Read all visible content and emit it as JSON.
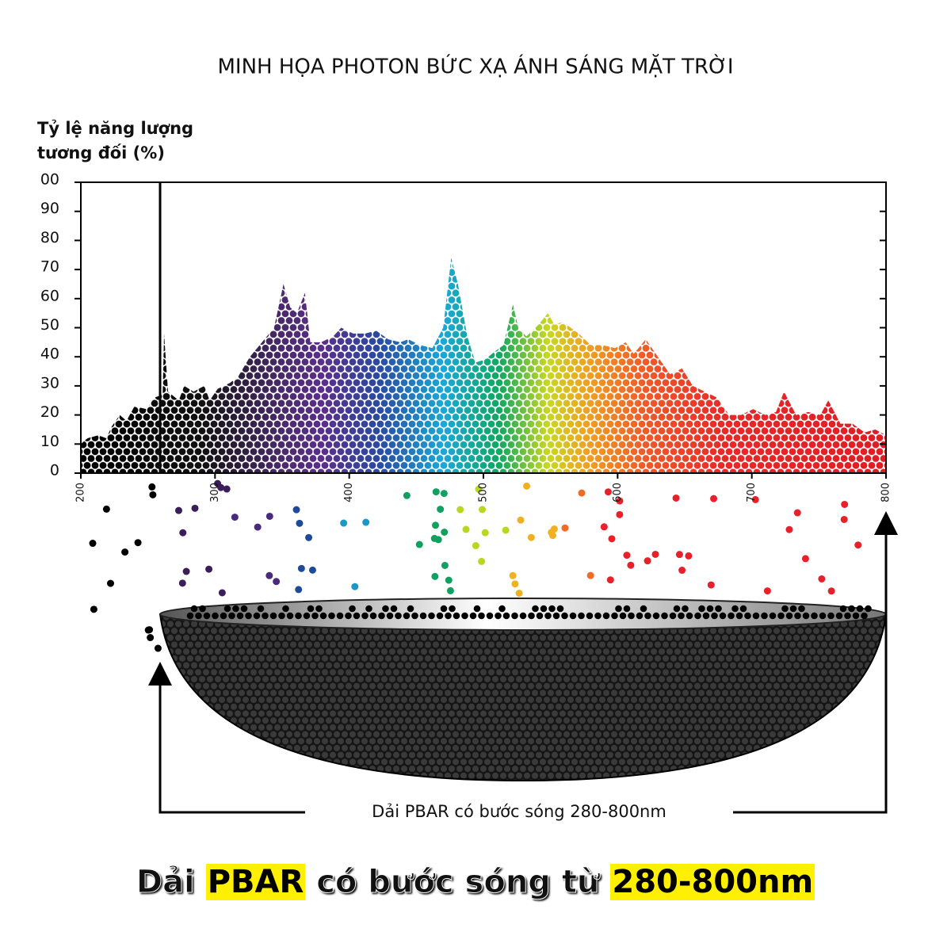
{
  "chart_data": {
    "type": "area",
    "title": "MINH HỌA PHOTON BỨC XẠ ÁNH SÁNG MẶT TRỜI",
    "y_label": [
      "Tỷ lệ năng lượng",
      "tương đối (%)"
    ],
    "x": [
      200,
      205,
      213,
      219,
      223,
      229,
      234,
      240,
      249,
      255,
      261,
      262,
      265,
      273,
      277,
      284,
      292,
      296,
      302,
      311,
      317,
      326,
      335,
      344,
      351,
      356,
      361,
      367,
      371,
      379,
      388,
      394,
      403,
      412,
      420,
      429,
      438,
      444,
      453,
      462,
      470,
      476,
      481,
      488,
      494,
      501,
      509,
      515,
      522,
      526,
      532,
      541,
      548,
      553,
      559,
      565,
      571,
      580,
      589,
      598,
      606,
      612,
      621,
      630,
      639,
      648,
      656,
      665,
      674,
      683,
      692,
      701,
      710,
      718,
      724,
      733,
      742,
      751,
      757,
      766,
      775,
      784,
      792,
      800
    ],
    "values": [
      10,
      12,
      13,
      12,
      16,
      20,
      18,
      23,
      22,
      26,
      27,
      48,
      28,
      25,
      30,
      28,
      30,
      25,
      29,
      31,
      33,
      40,
      45,
      50,
      65,
      57,
      55,
      62,
      45,
      45,
      47,
      50,
      48,
      48,
      49,
      46,
      45,
      46,
      44,
      43,
      50,
      74,
      65,
      47,
      38,
      39,
      42,
      44,
      58,
      50,
      47,
      51,
      55,
      51,
      52,
      50,
      48,
      44,
      44,
      43,
      45,
      41,
      46,
      40,
      34,
      36,
      30,
      28,
      26,
      20,
      20,
      22,
      20,
      21,
      28,
      20,
      21,
      20,
      25,
      17,
      17,
      14,
      15,
      13
    ],
    "xlim": [
      200,
      800
    ],
    "xticks": [
      200,
      300,
      400,
      500,
      600,
      700,
      800
    ],
    "ylim": [
      0,
      100
    ],
    "yticks": [
      0,
      10,
      20,
      30,
      40,
      50,
      60,
      70,
      80,
      90,
      {
        "value": 100,
        "label": "00"
      }
    ],
    "band_label": "Dải PBAR có bước sóng 280-800nm",
    "banner": [
      "Dải ",
      "PBAR",
      " có bước sóng từ ",
      "280-800nm"
    ]
  }
}
